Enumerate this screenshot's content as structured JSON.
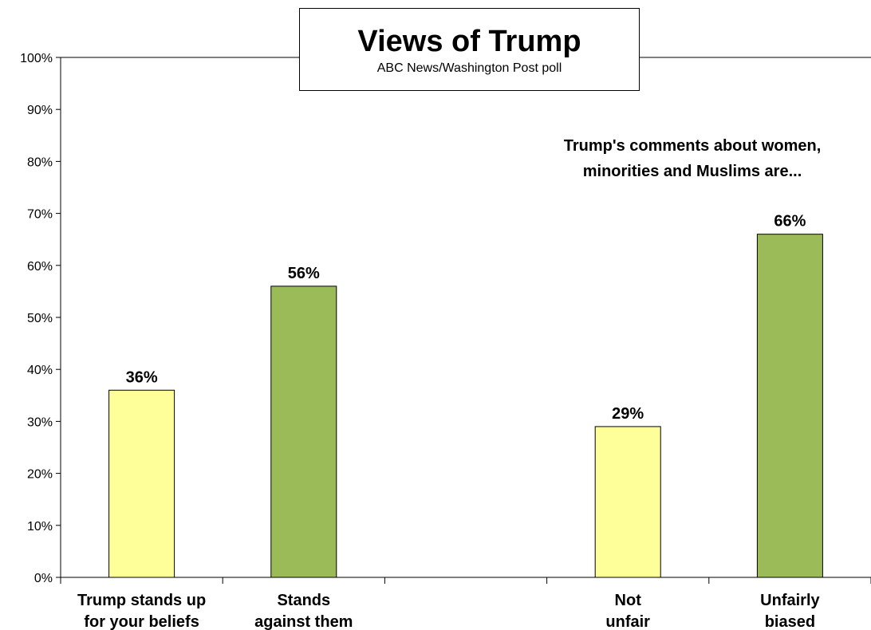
{
  "chart_data": {
    "type": "bar",
    "title": "Views of Trump",
    "subtitle": "ABC News/Washington  Post poll",
    "annotation": [
      "Trump's comments about women,",
      "minorities and Muslims are..."
    ],
    "ylim": [
      0,
      100
    ],
    "y_ticks": [
      "0%",
      "10%",
      "20%",
      "30%",
      "40%",
      "50%",
      "60%",
      "70%",
      "80%",
      "90%",
      "100%"
    ],
    "grid": false,
    "colors": {
      "yellow": "#FFFF99",
      "green": "#9BBB59",
      "outline": "#000000"
    },
    "bars": [
      {
        "label": [
          "Trump stands up",
          "for your beliefs"
        ],
        "value": 36,
        "value_label": "36%",
        "color": "#FFFF99"
      },
      {
        "label": [
          "Stands",
          "against them"
        ],
        "value": 56,
        "value_label": "56%",
        "color": "#9BBB59"
      },
      {
        "label": [],
        "value": null,
        "value_label": "",
        "color": ""
      },
      {
        "label": [
          "Not",
          "unfair"
        ],
        "value": 29,
        "value_label": "29%",
        "color": "#FFFF99"
      },
      {
        "label": [
          "Unfairly",
          "biased"
        ],
        "value": 66,
        "value_label": "66%",
        "color": "#9BBB59"
      }
    ]
  }
}
